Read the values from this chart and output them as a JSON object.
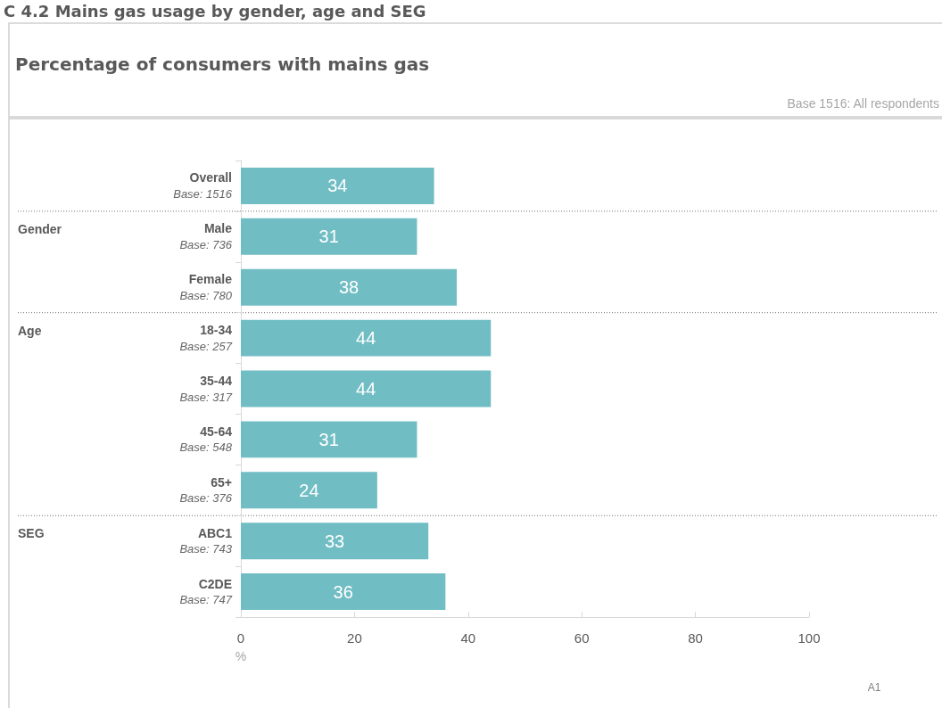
{
  "chart_data": {
    "type": "bar",
    "orientation": "horizontal",
    "title": "C 4.2 Mains gas usage by gender, age and SEG",
    "subtitle": "Percentage of consumers with mains gas",
    "xlabel": "%",
    "categories": [
      "Overall\nBase: 1516",
      "Male\nBase: 736",
      "Female\nBase: 780",
      "18-34\nBase: 257",
      "35-44\nBase: 317",
      "45-64\nBase: 548",
      "65+\nBase: 376",
      "ABC1\nBase: 743",
      "C2DE\nBase: 747"
    ],
    "values": [
      34,
      31,
      38,
      44,
      44,
      31,
      24,
      33,
      36
    ],
    "color": "#71bdc4",
    "xlim": [
      0,
      100
    ],
    "xticks": [
      0,
      20,
      40,
      60,
      80,
      100
    ],
    "data_labels": true,
    "grid": false,
    "annotations": [
      "Base 1516: All respondents",
      "Gender",
      "Age",
      "SEG",
      "A1"
    ]
  }
}
